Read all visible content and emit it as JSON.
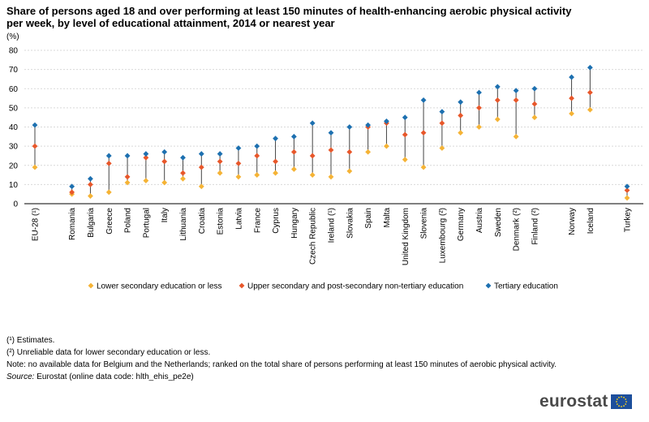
{
  "chart_data": {
    "type": "scatter",
    "title": "Share of persons aged 18 and over performing at least 150 minutes of health-enhancing aerobic physical activity per week, by level of educational attainment, 2014 or nearest year",
    "ylabel": "(%)",
    "ylim": [
      0,
      80
    ],
    "yticks": [
      0,
      10,
      20,
      30,
      40,
      50,
      60,
      70,
      80
    ],
    "grid": true,
    "legend_position": "bottom",
    "categories": [
      "EU-28 (¹)",
      "Romania",
      "Bulgaria",
      "Greece",
      "Poland",
      "Portugal",
      "Italy",
      "Lithuania",
      "Croatia",
      "Estonia",
      "Latvia",
      "France",
      "Cyprus",
      "Hungary",
      "Czech Republic",
      "Ireland (¹)",
      "Slovakia",
      "Spain",
      "Malta",
      "United Kingdom",
      "Slovenia",
      "Luxembourg (²)",
      "Germany",
      "Austria",
      "Sweden",
      "Denmark (²)",
      "Finland (²)",
      "Norway",
      "Iceland",
      "Turkey"
    ],
    "groups": [
      [
        0
      ],
      [
        1,
        2,
        3,
        4,
        5,
        6,
        7,
        8,
        9,
        10,
        11,
        12,
        13,
        14,
        15,
        16,
        17,
        18,
        19,
        20,
        21,
        22,
        23,
        24,
        25,
        26
      ],
      [
        27,
        28
      ],
      [
        29
      ]
    ],
    "series": [
      {
        "name": "Lower secondary education or less",
        "color": "#f5b335",
        "values": [
          19,
          5,
          4,
          6,
          11,
          12,
          11,
          13,
          9,
          16,
          14,
          15,
          16,
          18,
          15,
          14,
          17,
          27,
          30,
          23,
          19,
          29,
          37,
          40,
          44,
          35,
          45,
          47,
          49,
          3
        ]
      },
      {
        "name": "Upper secondary and post-secondary non-tertiary education",
        "color": "#e8572a",
        "values": [
          30,
          6,
          10,
          21,
          14,
          24,
          22,
          16,
          19,
          22,
          21,
          25,
          22,
          27,
          25,
          28,
          27,
          40,
          42,
          36,
          37,
          42,
          46,
          50,
          54,
          54,
          52,
          55,
          58,
          7
        ]
      },
      {
        "name": "Tertiary education",
        "color": "#1d70b0",
        "values": [
          41,
          9,
          13,
          25,
          25,
          26,
          27,
          24,
          26,
          26,
          29,
          30,
          34,
          35,
          42,
          37,
          40,
          41,
          43,
          45,
          54,
          48,
          53,
          58,
          61,
          59,
          60,
          66,
          71,
          9
        ]
      }
    ]
  },
  "footnotes": [
    "(¹) Estimates.",
    "(²) Unreliable data for lower secondary education or less.",
    "Note: no available data for Belgium and the Netherlands; ranked on the total share of persons performing at least 150 minutes of aerobic physical activity."
  ],
  "source": {
    "label": "Source:",
    "text": "Eurostat (online data code: hlth_ehis_pe2e)"
  },
  "logo": {
    "text": "eurostat"
  }
}
